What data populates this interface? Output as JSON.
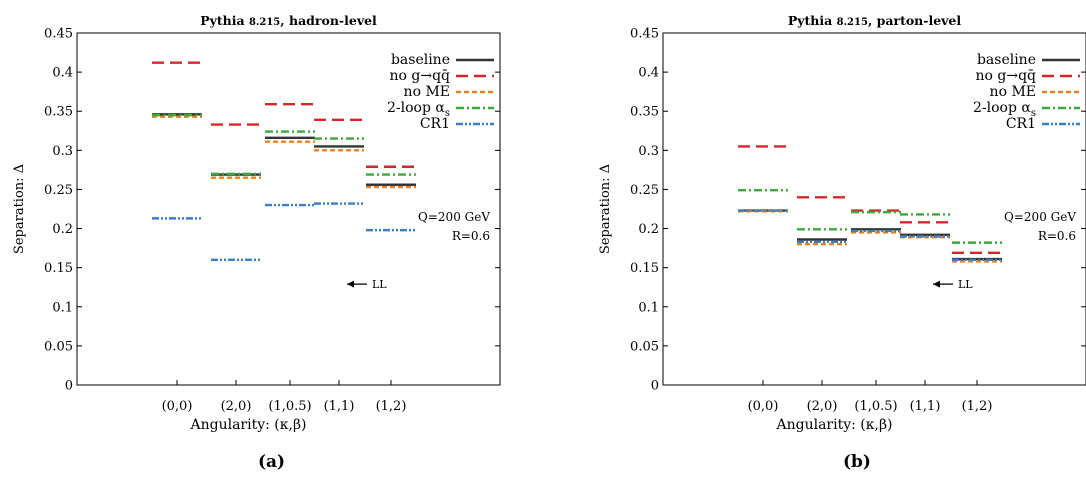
{
  "chart_data": [
    {
      "type": "bar",
      "title": "Pythia 8.215, hadron-level",
      "title_parts": {
        "prefix": "Pythia ",
        "version": "8.215",
        "suffix": ", hadron-level"
      },
      "xlabel": "Angularity: (κ,β)",
      "ylabel": "Separation: Δ",
      "ylim": [
        0,
        0.45
      ],
      "yticks": [
        "0",
        "0.05",
        "0.1",
        "0.15",
        "0.2",
        "0.25",
        "0.3",
        "0.35",
        "0.4",
        "0.45"
      ],
      "categories": [
        "(0,0)",
        "(2,0)",
        "(1,0.5)",
        "(1,1)",
        "(1,2)"
      ],
      "legend_position": "top-right",
      "grid": false,
      "series": [
        {
          "name": "baseline",
          "label_main": "baseline",
          "label_sub": "",
          "color": "#333333",
          "dash": "",
          "values": [
            0.346,
            0.269,
            0.316,
            0.305,
            0.256
          ]
        },
        {
          "name": "no g→qq̄",
          "label_main": "no g→qq̄",
          "label_sub": "",
          "color": "#d62728",
          "dash": "12,6",
          "values": [
            0.412,
            0.333,
            0.359,
            0.339,
            0.279
          ]
        },
        {
          "name": "no ME",
          "label_main": "no ME",
          "label_sub": "",
          "color": "#e8821e",
          "dash": "5,3",
          "values": [
            0.343,
            0.265,
            0.311,
            0.3,
            0.253
          ]
        },
        {
          "name": "2-loop αs",
          "label_main": "2-loop α",
          "label_sub": "s",
          "color": "#3aa83a",
          "dash": "8,3,2,3",
          "values": [
            0.345,
            0.27,
            0.324,
            0.315,
            0.269
          ]
        },
        {
          "name": "CR1",
          "label_main": "CR1",
          "label_sub": "",
          "color": "#3a7fc1",
          "dash": "7,2,2,2,2,2",
          "values": [
            0.213,
            0.16,
            0.23,
            0.232,
            0.198
          ]
        }
      ],
      "annotations": {
        "q": "Q=200 GeV",
        "r": "R=0.6",
        "ll": "LL",
        "ll_value": 0.129,
        "ll_arrow": "⟵"
      },
      "caption": "(a)"
    },
    {
      "type": "bar",
      "title": "Pythia 8.215, parton-level",
      "title_parts": {
        "prefix": "Pythia ",
        "version": "8.215",
        "suffix": ", parton-level"
      },
      "xlabel": "Angularity: (κ,β)",
      "ylabel": "Separation: Δ",
      "ylim": [
        0,
        0.45
      ],
      "yticks": [
        "0",
        "0.05",
        "0.1",
        "0.15",
        "0.2",
        "0.25",
        "0.3",
        "0.35",
        "0.4",
        "0.45"
      ],
      "categories": [
        "(0,0)",
        "(2,0)",
        "(1,0.5)",
        "(1,1)",
        "(1,2)"
      ],
      "legend_position": "top-right",
      "grid": false,
      "series": [
        {
          "name": "baseline",
          "label_main": "baseline",
          "label_sub": "",
          "color": "#333333",
          "dash": "",
          "values": [
            0.223,
            0.186,
            0.199,
            0.192,
            0.161
          ]
        },
        {
          "name": "no g→qq̄",
          "label_main": "no g→qq̄",
          "label_sub": "",
          "color": "#d62728",
          "dash": "12,6",
          "values": [
            0.305,
            0.24,
            0.223,
            0.208,
            0.169
          ]
        },
        {
          "name": "no ME",
          "label_main": "no ME",
          "label_sub": "",
          "color": "#e8821e",
          "dash": "5,3",
          "values": [
            0.222,
            0.18,
            0.195,
            0.189,
            0.158
          ]
        },
        {
          "name": "2-loop αs",
          "label_main": "2-loop α",
          "label_sub": "s",
          "color": "#3aa83a",
          "dash": "8,3,2,3",
          "values": [
            0.249,
            0.199,
            0.221,
            0.218,
            0.182
          ]
        },
        {
          "name": "CR1",
          "label_main": "CR1",
          "label_sub": "",
          "color": "#3a7fc1",
          "dash": "7,2,2,2,2,2",
          "values": [
            0.223,
            0.183,
            0.197,
            0.19,
            0.16
          ]
        }
      ],
      "annotations": {
        "q": "Q=200 GeV",
        "r": "R=0.6",
        "ll": "LL",
        "ll_value": 0.129,
        "ll_arrow": "⟵"
      },
      "caption": "(b)"
    }
  ]
}
